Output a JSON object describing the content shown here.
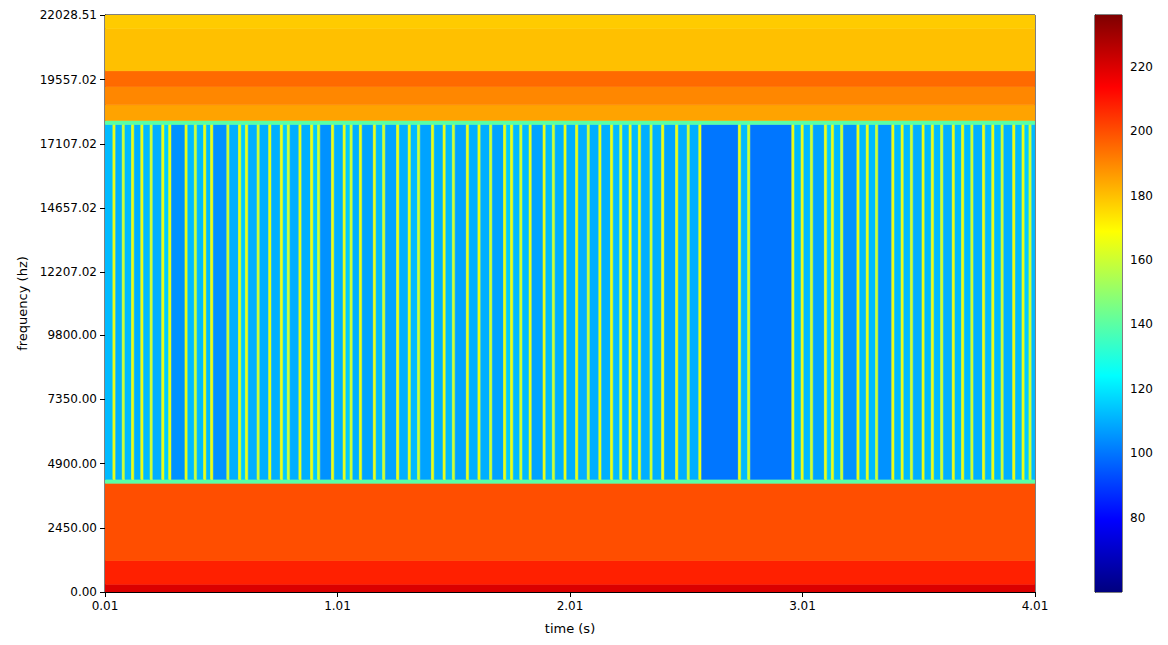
{
  "chart_data": {
    "type": "heatmap",
    "xlabel": "time (s)",
    "ylabel": "frequency (hz)",
    "xlim": [
      0.01,
      4.01
    ],
    "xticks": [
      0.01,
      1.01,
      2.01,
      3.01,
      4.01
    ],
    "ylim": [
      0,
      22028.51
    ],
    "yticks": [
      {
        "value": 0,
        "label": "0.00"
      },
      {
        "value": 2450,
        "label": "2450.00"
      },
      {
        "value": 4900,
        "label": "4900.00"
      },
      {
        "value": 7350,
        "label": "7350.00"
      },
      {
        "value": 9800,
        "label": "9800.00"
      },
      12207.02,
      14657.02,
      17107.02,
      19557.02,
      22028.51
    ],
    "colorbar": {
      "range": [
        57,
        236
      ],
      "ticks": [
        80,
        100,
        120,
        140,
        160,
        180,
        200,
        220
      ]
    },
    "cells": [
      {
        "freq": [
          0,
          300
        ],
        "time_edges": [
          0.01,
          4.01
        ],
        "values": [
          220
        ]
      },
      {
        "freq": [
          300,
          1200
        ],
        "time_edges": [
          0.01,
          4.01
        ],
        "values": [
          208
        ]
      },
      {
        "freq": [
          1200,
          4150
        ],
        "time_edges": [
          0.01,
          4.01
        ],
        "values": [
          200
        ]
      },
      {
        "freq": [
          4150,
          4300
        ],
        "time_edges": [
          0.01,
          4.01
        ],
        "values": [
          140
        ]
      },
      {
        "freq": [
          4300,
          17850
        ],
        "time_edges": [
          0.01,
          0.044,
          0.056,
          0.084,
          0.096,
          0.124,
          0.136,
          0.164,
          0.176,
          0.204,
          0.216,
          0.254,
          0.266,
          0.284,
          0.296,
          0.354,
          0.366,
          0.394,
          0.406,
          0.434,
          0.446,
          0.464,
          0.476,
          0.534,
          0.546,
          0.584,
          0.596,
          0.614,
          0.626,
          0.664,
          0.676,
          0.714,
          0.726,
          0.764,
          0.776,
          0.794,
          0.806,
          0.844,
          0.856,
          0.894,
          0.906,
          0.924,
          0.936,
          0.984,
          0.996,
          1.034,
          1.046,
          1.064,
          1.076,
          1.104,
          1.116,
          1.164,
          1.176,
          1.204,
          1.216,
          1.264,
          1.276,
          1.314,
          1.326,
          1.354,
          1.366,
          1.414,
          1.426,
          1.464,
          1.476,
          1.504,
          1.516,
          1.564,
          1.576,
          1.614,
          1.626,
          1.664,
          1.676,
          1.724,
          1.736,
          1.754,
          1.766,
          1.794,
          1.806,
          1.834,
          1.846,
          1.894,
          1.906,
          1.934,
          1.946,
          1.984,
          1.996,
          2.034,
          2.046,
          2.084,
          2.096,
          2.134,
          2.146,
          2.184,
          2.196,
          2.224,
          2.236,
          2.264,
          2.276,
          2.304,
          2.316,
          2.354,
          2.366,
          2.404,
          2.416,
          2.464,
          2.476,
          2.514,
          2.526,
          2.564,
          2.576,
          2.734,
          2.746,
          2.774,
          2.786,
          2.964,
          2.976,
          3.004,
          3.016,
          3.044,
          3.056,
          3.104,
          3.116,
          3.134,
          3.146,
          3.174,
          3.186,
          3.244,
          3.256,
          3.284,
          3.296,
          3.324,
          3.336,
          3.394,
          3.406,
          3.434,
          3.446,
          3.474,
          3.486,
          3.524,
          3.536,
          3.564,
          3.576,
          3.604,
          3.616,
          3.654,
          3.666,
          3.694,
          3.706,
          3.734,
          3.746,
          3.784,
          3.796,
          3.824,
          3.836,
          3.864,
          3.876,
          3.914,
          3.926,
          3.954,
          3.966,
          3.984,
          3.996,
          4.01
        ],
        "values": [
          112,
          165,
          110,
          160,
          112,
          165,
          110,
          165,
          112,
          160,
          110,
          165,
          115,
          165,
          105,
          165,
          112,
          160,
          112,
          165,
          112,
          165,
          105,
          160,
          110,
          165,
          115,
          165,
          110,
          160,
          110,
          165,
          110,
          165,
          115,
          160,
          110,
          165,
          110,
          165,
          115,
          160,
          105,
          165,
          110,
          165,
          115,
          160,
          110,
          165,
          108,
          165,
          112,
          160,
          108,
          165,
          110,
          165,
          112,
          160,
          108,
          165,
          110,
          165,
          112,
          160,
          108,
          165,
          110,
          165,
          110,
          160,
          108,
          165,
          115,
          165,
          112,
          160,
          112,
          165,
          108,
          165,
          112,
          160,
          110,
          165,
          110,
          165,
          110,
          160,
          110,
          165,
          110,
          165,
          112,
          160,
          112,
          165,
          112,
          165,
          110,
          160,
          110,
          165,
          108,
          165,
          110,
          160,
          110,
          165,
          100,
          165,
          112,
          160,
          100,
          165,
          112,
          165,
          112,
          160,
          108,
          165,
          115,
          165,
          112,
          160,
          105,
          165,
          112,
          165,
          112,
          160,
          105,
          165,
          112,
          165,
          112,
          160,
          110,
          165,
          112,
          165,
          112,
          160,
          110,
          165,
          112,
          165,
          112,
          160,
          110,
          165,
          112,
          165,
          112,
          160,
          110,
          165,
          112,
          165,
          115,
          160,
          112
        ]
      },
      {
        "freq": [
          17850,
          18000
        ],
        "time_edges": [
          0.01,
          4.01
        ],
        "values": [
          140
        ]
      },
      {
        "freq": [
          18000,
          18600
        ],
        "time_edges": [
          0.01,
          4.01
        ],
        "values": [
          185
        ]
      },
      {
        "freq": [
          18600,
          19300
        ],
        "time_edges": [
          0.01,
          4.01
        ],
        "values": [
          190
        ]
      },
      {
        "freq": [
          19300,
          19900
        ],
        "time_edges": [
          0.01,
          4.01
        ],
        "values": [
          195
        ]
      },
      {
        "freq": [
          19900,
          21500
        ],
        "time_edges": [
          0.01,
          4.01
        ],
        "values": [
          180
        ]
      },
      {
        "freq": [
          21500,
          22028.51
        ],
        "time_edges": [
          0.01,
          4.01
        ],
        "values": [
          178
        ]
      }
    ]
  }
}
